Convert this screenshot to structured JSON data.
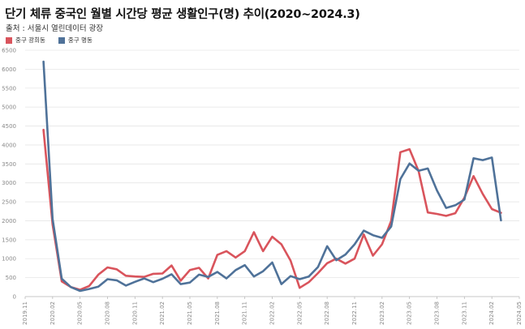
{
  "chart_data": {
    "type": "line",
    "title": "단기 체류 중국인 월별 시간당 평균 생활인구(명) 추이(2020~2024.3)",
    "subtitle": "출처 : 서울시 열린데이터 광장",
    "xlabel": "",
    "ylabel": "",
    "ylim": [
      0,
      6500
    ],
    "yticks": [
      0,
      500,
      1000,
      1500,
      2000,
      2500,
      3000,
      3500,
      4000,
      4500,
      5000,
      5500,
      6000,
      6500
    ],
    "xticks": [
      "2019.11",
      "2020.02",
      "2020.05",
      "2020.08",
      "2020.11",
      "2021.02",
      "2021.05",
      "2021.08",
      "2021.11",
      "2022.02",
      "2022.05",
      "2022.08",
      "2022.11",
      "2023.02",
      "2023.05",
      "2023.08",
      "2023.11",
      "2024.02",
      "2024.05"
    ],
    "grid": true,
    "legend_position": "top-left",
    "x": [
      "2020.01",
      "2020.02",
      "2020.03",
      "2020.04",
      "2020.05",
      "2020.06",
      "2020.07",
      "2020.08",
      "2020.09",
      "2020.10",
      "2020.11",
      "2020.12",
      "2021.01",
      "2021.02",
      "2021.03",
      "2021.04",
      "2021.05",
      "2021.06",
      "2021.07",
      "2021.08",
      "2021.09",
      "2021.10",
      "2021.11",
      "2021.12",
      "2022.01",
      "2022.02",
      "2022.03",
      "2022.04",
      "2022.05",
      "2022.06",
      "2022.07",
      "2022.08",
      "2022.09",
      "2022.10",
      "2022.11",
      "2022.12",
      "2023.01",
      "2023.02",
      "2023.03",
      "2023.04",
      "2023.05",
      "2023.06",
      "2023.07",
      "2023.08",
      "2023.09",
      "2023.10",
      "2023.11",
      "2023.12",
      "2024.01",
      "2024.02",
      "2024.03"
    ],
    "series": [
      {
        "name": "중구 광희동",
        "color": "#d9545c",
        "values": [
          4400,
          1900,
          400,
          250,
          180,
          280,
          580,
          770,
          720,
          550,
          530,
          520,
          600,
          610,
          820,
          420,
          700,
          760,
          480,
          1100,
          1200,
          1030,
          1200,
          1700,
          1200,
          1580,
          1380,
          950,
          230,
          380,
          620,
          880,
          1000,
          870,
          1000,
          1640,
          1080,
          1380,
          2000,
          3810,
          3890,
          3310,
          2220,
          2180,
          2130,
          2200,
          2610,
          3180,
          2710,
          2310,
          2210
        ]
      },
      {
        "name": "중구 명동",
        "color": "#4f7299",
        "values": [
          6200,
          2050,
          470,
          250,
          150,
          200,
          260,
          460,
          430,
          290,
          390,
          480,
          380,
          470,
          590,
          330,
          370,
          580,
          520,
          650,
          480,
          700,
          830,
          530,
          670,
          900,
          330,
          540,
          460,
          530,
          780,
          1330,
          960,
          1110,
          1380,
          1740,
          1620,
          1550,
          1850,
          3100,
          3510,
          3320,
          3380,
          2800,
          2340,
          2410,
          2560,
          3650,
          3600,
          3670,
          2010
        ]
      }
    ]
  }
}
